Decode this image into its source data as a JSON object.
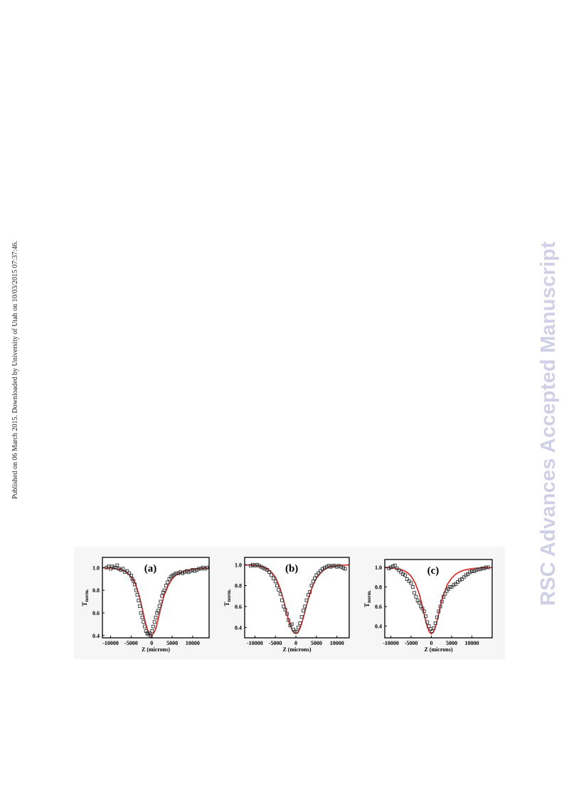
{
  "side_note": "Published on 06 March 2015. Downloaded by University of Utah on 10/03/2015 07:37:46.",
  "watermark": "RSC Advances Accepted Manuscript",
  "colors": {
    "fit": "#d62020",
    "marker": "#333333",
    "watermark": "#cfd0e6"
  },
  "chart_data": [
    {
      "type": "scatter",
      "panel_label": "(a)",
      "xlabel": "Z (microns)",
      "ylabel": "T",
      "ylabel_sub": "norm.",
      "xlim": [
        -12000,
        14000
      ],
      "ylim": [
        0.38,
        1.09
      ],
      "xticks": [
        -10000,
        -5000,
        0,
        5000,
        10000
      ],
      "xtick_labels": [
        "-10000",
        "-5000",
        "0",
        "5000",
        "10000"
      ],
      "yticks": [
        0.4,
        0.6,
        0.8,
        1.0
      ],
      "ytick_labels": [
        "0.4",
        "0.6",
        "0.8",
        "1.0"
      ],
      "series": [
        {
          "kind": "points",
          "x": [
            -11000,
            -10500,
            -10000,
            -9600,
            -9200,
            -8800,
            -8400,
            -8000,
            -7500,
            -7000,
            -6500,
            -6000,
            -5500,
            -5000,
            -4700,
            -4400,
            -4100,
            -3800,
            -3500,
            -3200,
            -2900,
            -2600,
            -2300,
            -2000,
            -1700,
            -1400,
            -1100,
            -800,
            -500,
            -200,
            100,
            400,
            700,
            1000,
            1300,
            1600,
            1900,
            2200,
            2500,
            2800,
            3100,
            3500,
            3900,
            4300,
            4700,
            5100,
            5500,
            6000,
            6500,
            7000,
            7500,
            8000,
            8500,
            9000,
            9500,
            10000,
            10500,
            11000,
            11500,
            12000,
            12500,
            13000,
            13500
          ],
          "y": [
            1.0,
            1.01,
            0.99,
            1.01,
            1.0,
            1.0,
            1.02,
            0.99,
            0.98,
            0.99,
            0.96,
            0.97,
            0.95,
            0.93,
            0.9,
            0.88,
            0.85,
            0.8,
            0.76,
            0.71,
            0.66,
            0.6,
            0.56,
            0.52,
            0.48,
            0.44,
            0.42,
            0.41,
            0.42,
            0.4,
            0.44,
            0.48,
            0.52,
            0.56,
            0.6,
            0.62,
            0.66,
            0.7,
            0.75,
            0.78,
            0.8,
            0.84,
            0.87,
            0.9,
            0.92,
            0.93,
            0.94,
            0.95,
            0.95,
            0.96,
            0.95,
            0.96,
            0.97,
            0.96,
            0.97,
            0.98,
            0.97,
            0.98,
            0.99,
            0.99,
            1.0,
            0.99,
            1.0
          ]
        },
        {
          "kind": "fit",
          "x": [
            -12000,
            -10000,
            -8000,
            -7000,
            -6000,
            -5000,
            -4000,
            -3000,
            -2500,
            -2000,
            -1500,
            -1000,
            -500,
            0,
            500,
            1000,
            1500,
            2000,
            2500,
            3000,
            4000,
            5000,
            6000,
            7000,
            8000,
            9000,
            10000,
            12000,
            14000
          ],
          "y": [
            0.998,
            0.995,
            0.985,
            0.975,
            0.955,
            0.92,
            0.86,
            0.75,
            0.67,
            0.59,
            0.51,
            0.45,
            0.41,
            0.4,
            0.42,
            0.46,
            0.53,
            0.61,
            0.68,
            0.75,
            0.84,
            0.9,
            0.935,
            0.955,
            0.97,
            0.98,
            0.985,
            0.993,
            0.997
          ]
        }
      ]
    },
    {
      "type": "scatter",
      "panel_label": "(b)",
      "xlabel": "Z (microns)",
      "ylabel": "T",
      "ylabel_sub": "norm.",
      "xlim": [
        -12500,
        13000
      ],
      "ylim": [
        0.3,
        1.07
      ],
      "xticks": [
        -10000,
        -5000,
        0,
        5000,
        10000
      ],
      "xtick_labels": [
        "-10000",
        "-5000",
        "0",
        "5000",
        "10000"
      ],
      "yticks": [
        0.4,
        0.6,
        0.8,
        1.0
      ],
      "ytick_labels": [
        "0.4",
        "0.6",
        "0.8",
        "1.0"
      ],
      "series": [
        {
          "kind": "points",
          "x": [
            -11000,
            -10500,
            -10000,
            -9500,
            -9000,
            -8500,
            -8000,
            -7500,
            -7000,
            -6500,
            -6000,
            -5500,
            -5000,
            -4600,
            -4200,
            -3800,
            -3400,
            -3000,
            -2600,
            -2200,
            -1800,
            -1400,
            -1000,
            -600,
            -200,
            200,
            600,
            1000,
            1400,
            1800,
            2200,
            2600,
            3000,
            3400,
            3800,
            4200,
            4600,
            5000,
            5500,
            6000,
            6500,
            7000,
            7500,
            8000,
            8500,
            9000,
            9500,
            10000,
            10500,
            11000,
            11500,
            12000
          ],
          "y": [
            0.99,
            1.0,
            0.99,
            1.0,
            0.99,
            0.98,
            0.97,
            0.96,
            0.95,
            0.93,
            0.9,
            0.87,
            0.84,
            0.8,
            0.76,
            0.72,
            0.66,
            0.6,
            0.57,
            0.53,
            0.47,
            0.42,
            0.43,
            0.38,
            0.36,
            0.36,
            0.4,
            0.44,
            0.5,
            0.56,
            0.6,
            0.66,
            0.71,
            0.74,
            0.8,
            0.84,
            0.87,
            0.9,
            0.92,
            0.94,
            0.96,
            0.97,
            0.98,
            0.99,
            0.98,
            0.99,
            0.99,
            0.98,
            0.99,
            0.98,
            0.97,
            0.96
          ]
        },
        {
          "kind": "fit",
          "x": [
            -12500,
            -11000,
            -9000,
            -8000,
            -7000,
            -6000,
            -5000,
            -4000,
            -3000,
            -2500,
            -2000,
            -1500,
            -1000,
            -500,
            0,
            500,
            1000,
            1500,
            2000,
            2500,
            3000,
            4000,
            5000,
            6000,
            7000,
            8000,
            9000,
            11000,
            13000
          ],
          "y": [
            0.998,
            0.996,
            0.988,
            0.978,
            0.96,
            0.93,
            0.88,
            0.79,
            0.66,
            0.58,
            0.5,
            0.43,
            0.38,
            0.35,
            0.34,
            0.35,
            0.39,
            0.45,
            0.52,
            0.6,
            0.67,
            0.79,
            0.87,
            0.92,
            0.955,
            0.975,
            0.985,
            0.995,
            0.998
          ]
        }
      ]
    },
    {
      "type": "scatter",
      "panel_label": "(c)",
      "xlabel": "Z (microns)",
      "ylabel": "T",
      "ylabel_sub": "norm.",
      "xlim": [
        -11500,
        15000
      ],
      "ylim": [
        0.28,
        1.08
      ],
      "xticks": [
        -10000,
        -5000,
        0,
        5000,
        10000
      ],
      "xtick_labels": [
        "-10000",
        "-5000",
        "0",
        "5000",
        "10000"
      ],
      "yticks": [
        0.4,
        0.6,
        0.8,
        1.0
      ],
      "ytick_labels": [
        "0.4",
        "0.6",
        "0.8",
        "1.0"
      ],
      "series": [
        {
          "kind": "points",
          "x": [
            -10500,
            -10000,
            -9500,
            -9000,
            -8500,
            -8000,
            -7500,
            -7000,
            -6500,
            -6000,
            -5500,
            -5000,
            -4600,
            -4200,
            -3800,
            -3400,
            -3000,
            -2600,
            -2200,
            -1800,
            -1400,
            -1000,
            -600,
            -200,
            200,
            600,
            1000,
            1400,
            1800,
            2200,
            2600,
            3000,
            3400,
            3800,
            4200,
            4600,
            5000,
            5500,
            6000,
            6500,
            7000,
            7500,
            8000,
            8500,
            9000,
            9500,
            10000,
            10500,
            11000,
            11500,
            12000,
            12500,
            13000,
            13500,
            14000
          ],
          "y": [
            0.99,
            1.0,
            1.01,
            1.02,
            0.99,
            0.97,
            0.95,
            0.93,
            0.92,
            0.88,
            0.86,
            0.84,
            0.8,
            0.74,
            0.7,
            0.66,
            0.64,
            0.6,
            0.58,
            0.55,
            0.5,
            0.44,
            0.4,
            0.37,
            0.35,
            0.38,
            0.43,
            0.49,
            0.55,
            0.6,
            0.65,
            0.7,
            0.73,
            0.76,
            0.78,
            0.8,
            0.8,
            0.82,
            0.83,
            0.85,
            0.87,
            0.88,
            0.9,
            0.92,
            0.93,
            0.95,
            0.96,
            0.96,
            0.97,
            0.98,
            0.98,
            0.99,
            0.99,
            1.0,
            1.0
          ]
        },
        {
          "kind": "fit",
          "x": [
            -11500,
            -10000,
            -8000,
            -7000,
            -6000,
            -5000,
            -4000,
            -3000,
            -2500,
            -2000,
            -1500,
            -1000,
            -500,
            0,
            500,
            1000,
            1500,
            2000,
            2500,
            3000,
            4000,
            5000,
            6000,
            7000,
            8000,
            9000,
            10000,
            12000,
            15000
          ],
          "y": [
            0.998,
            0.995,
            0.985,
            0.97,
            0.95,
            0.91,
            0.84,
            0.73,
            0.65,
            0.56,
            0.47,
            0.39,
            0.34,
            0.32,
            0.34,
            0.39,
            0.47,
            0.56,
            0.65,
            0.72,
            0.83,
            0.89,
            0.93,
            0.955,
            0.97,
            0.98,
            0.987,
            0.994,
            0.998
          ]
        }
      ]
    }
  ]
}
